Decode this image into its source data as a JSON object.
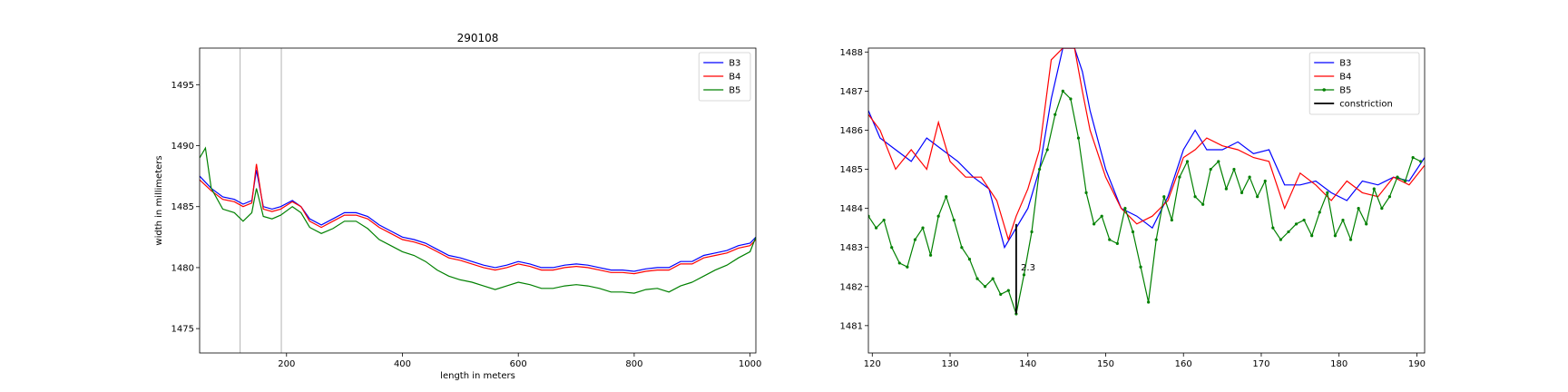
{
  "chart_data": [
    {
      "type": "line",
      "title": "290108",
      "xlabel": "length in meters",
      "ylabel": "width in millimeters",
      "xlim": [
        50,
        1010
      ],
      "ylim": [
        1473,
        1498
      ],
      "xticks": [
        200,
        400,
        600,
        800,
        1000
      ],
      "yticks": [
        1475,
        1480,
        1485,
        1490,
        1495
      ],
      "vlines": [
        120,
        191
      ],
      "legend": "top-right",
      "grid": false,
      "series": [
        {
          "name": "B3",
          "color": "#0000ff",
          "x": [
            50,
            70,
            90,
            110,
            125,
            140,
            148,
            160,
            175,
            190,
            210,
            225,
            240,
            260,
            280,
            300,
            320,
            340,
            360,
            380,
            400,
            420,
            440,
            460,
            480,
            500,
            520,
            540,
            560,
            580,
            600,
            620,
            640,
            660,
            680,
            700,
            720,
            740,
            760,
            780,
            800,
            820,
            840,
            860,
            880,
            900,
            920,
            940,
            960,
            980,
            1000,
            1010
          ],
          "y": [
            1487.5,
            1486.5,
            1485.8,
            1485.6,
            1485.2,
            1485.5,
            1488,
            1485,
            1484.8,
            1485,
            1485.5,
            1485,
            1484,
            1483.5,
            1484,
            1484.5,
            1484.5,
            1484.2,
            1483.5,
            1483,
            1482.5,
            1482.3,
            1482,
            1481.5,
            1481,
            1480.8,
            1480.5,
            1480.2,
            1480,
            1480.2,
            1480.5,
            1480.3,
            1480,
            1480,
            1480.2,
            1480.3,
            1480.2,
            1480,
            1479.8,
            1479.8,
            1479.7,
            1479.9,
            1480,
            1480,
            1480.5,
            1480.5,
            1481,
            1481.2,
            1481.4,
            1481.8,
            1482,
            1482.5
          ]
        },
        {
          "name": "B4",
          "color": "#ff0000",
          "x": [
            50,
            70,
            90,
            110,
            125,
            140,
            148,
            160,
            175,
            190,
            210,
            225,
            240,
            260,
            280,
            300,
            320,
            340,
            360,
            380,
            400,
            420,
            440,
            460,
            480,
            500,
            520,
            540,
            560,
            580,
            600,
            620,
            640,
            660,
            680,
            700,
            720,
            740,
            760,
            780,
            800,
            820,
            840,
            860,
            880,
            900,
            920,
            940,
            960,
            980,
            1000,
            1010
          ],
          "y": [
            1487.2,
            1486.3,
            1485.6,
            1485.4,
            1485,
            1485.3,
            1488.5,
            1484.8,
            1484.6,
            1484.8,
            1485.4,
            1485,
            1483.8,
            1483.3,
            1483.8,
            1484.3,
            1484.3,
            1484,
            1483.3,
            1482.8,
            1482.3,
            1482.1,
            1481.8,
            1481.3,
            1480.8,
            1480.6,
            1480.3,
            1480,
            1479.8,
            1480,
            1480.3,
            1480.1,
            1479.8,
            1479.8,
            1480,
            1480.1,
            1480,
            1479.8,
            1479.6,
            1479.6,
            1479.5,
            1479.7,
            1479.8,
            1479.8,
            1480.3,
            1480.3,
            1480.8,
            1481,
            1481.2,
            1481.6,
            1481.8,
            1482.3
          ]
        },
        {
          "name": "B5",
          "color": "#008000",
          "x": [
            50,
            60,
            70,
            90,
            110,
            125,
            140,
            148,
            160,
            175,
            190,
            210,
            225,
            240,
            260,
            280,
            300,
            320,
            340,
            360,
            380,
            400,
            420,
            440,
            460,
            480,
            500,
            520,
            540,
            560,
            580,
            600,
            620,
            640,
            660,
            680,
            700,
            720,
            740,
            760,
            780,
            800,
            820,
            840,
            860,
            880,
            900,
            920,
            940,
            960,
            980,
            1000,
            1010
          ],
          "y": [
            1489,
            1489.8,
            1486.5,
            1484.8,
            1484.5,
            1483.8,
            1484.5,
            1486.5,
            1484.2,
            1484,
            1484.3,
            1485,
            1484.5,
            1483.3,
            1482.8,
            1483.2,
            1483.8,
            1483.8,
            1483.2,
            1482.3,
            1481.8,
            1481.3,
            1481,
            1480.5,
            1479.8,
            1479.3,
            1479,
            1478.8,
            1478.5,
            1478.2,
            1478.5,
            1478.8,
            1478.6,
            1478.3,
            1478.3,
            1478.5,
            1478.6,
            1478.5,
            1478.3,
            1478,
            1478,
            1477.9,
            1478.2,
            1478.3,
            1478,
            1478.5,
            1478.8,
            1479.3,
            1479.8,
            1480.2,
            1480.8,
            1481.3,
            1482.5
          ]
        }
      ]
    },
    {
      "type": "line",
      "title": "",
      "xlabel": "",
      "ylabel": "",
      "xlim": [
        119.5,
        191
      ],
      "ylim": [
        1480.3,
        1488.1
      ],
      "xticks": [
        120,
        130,
        140,
        150,
        160,
        170,
        180,
        190
      ],
      "yticks": [
        1481,
        1482,
        1483,
        1484,
        1485,
        1486,
        1487,
        1488
      ],
      "legend": "top-right",
      "grid": false,
      "annotation": {
        "text": "2.3",
        "x": 139.1,
        "y": 1482.5
      },
      "constriction": {
        "name": "constriction",
        "color": "#000000",
        "x": 138.5,
        "y1": 1481.3,
        "y2": 1483.6
      },
      "series": [
        {
          "name": "B3",
          "color": "#0000ff",
          "marker": false,
          "x": [
            119.5,
            121,
            123,
            125,
            127,
            129,
            131,
            133,
            135,
            137,
            138.5,
            140,
            141.5,
            143,
            144.5,
            146,
            147,
            148,
            150,
            152,
            154,
            156,
            158,
            160,
            161.5,
            163,
            165,
            167,
            169,
            171,
            173,
            175,
            177,
            179,
            181,
            183,
            185,
            187,
            189,
            191
          ],
          "y": [
            1486.5,
            1485.8,
            1485.5,
            1485.2,
            1485.8,
            1485.5,
            1485.2,
            1484.8,
            1484.5,
            1483,
            1483.5,
            1484,
            1485,
            1486.8,
            1488.1,
            1488.1,
            1487.5,
            1486.5,
            1485,
            1484,
            1483.8,
            1483.5,
            1484.3,
            1485.5,
            1486,
            1485.5,
            1485.5,
            1485.7,
            1485.4,
            1485.5,
            1484.6,
            1484.6,
            1484.7,
            1484.4,
            1484.2,
            1484.7,
            1484.6,
            1484.8,
            1484.7,
            1485.3
          ]
        },
        {
          "name": "B4",
          "color": "#ff0000",
          "marker": false,
          "x": [
            119.5,
            121,
            123,
            125,
            127,
            128.5,
            130,
            132,
            134,
            136,
            137.5,
            138.5,
            140,
            141.5,
            143,
            144.5,
            146,
            147,
            148,
            150,
            152,
            154,
            156,
            158,
            160,
            161.5,
            163,
            165,
            167,
            169,
            171,
            173,
            175,
            177,
            179,
            181,
            183,
            185,
            187,
            189,
            191
          ],
          "y": [
            1486.4,
            1486,
            1485,
            1485.5,
            1485,
            1486.2,
            1485.2,
            1484.8,
            1484.8,
            1484.2,
            1483.2,
            1483.8,
            1484.5,
            1485.5,
            1487.8,
            1488.1,
            1488.1,
            1487,
            1486,
            1484.8,
            1484,
            1483.6,
            1483.8,
            1484.2,
            1485.3,
            1485.5,
            1485.8,
            1485.6,
            1485.5,
            1485.3,
            1485.2,
            1484,
            1484.9,
            1484.6,
            1484.2,
            1484.7,
            1484.4,
            1484.3,
            1484.8,
            1484.6,
            1485.1
          ]
        },
        {
          "name": "B5",
          "color": "#008000",
          "marker": true,
          "x": [
            119.5,
            120.5,
            121.5,
            122.5,
            123.5,
            124.5,
            125.5,
            126.5,
            127.5,
            128.5,
            129.5,
            130.5,
            131.5,
            132.5,
            133.5,
            134.5,
            135.5,
            136.5,
            137.5,
            138.5,
            139.5,
            140.5,
            141.5,
            142.5,
            143.5,
            144.5,
            145.5,
            146.5,
            147.5,
            148.5,
            149.5,
            150.5,
            151.5,
            152.5,
            153.5,
            154.5,
            155.5,
            156.5,
            157.5,
            158.5,
            159.5,
            160.5,
            161.5,
            162.5,
            163.5,
            164.5,
            165.5,
            166.5,
            167.5,
            168.5,
            169.5,
            170.5,
            171.5,
            172.5,
            173.5,
            174.5,
            175.5,
            176.5,
            177.5,
            178.5,
            179.5,
            180.5,
            181.5,
            182.5,
            183.5,
            184.5,
            185.5,
            186.5,
            187.5,
            188.5,
            189.5,
            190.5
          ],
          "y": [
            1483.8,
            1483.5,
            1483.7,
            1483,
            1482.6,
            1482.5,
            1483.2,
            1483.5,
            1482.8,
            1483.8,
            1484.3,
            1483.7,
            1483,
            1482.7,
            1482.2,
            1482,
            1482.2,
            1481.8,
            1481.9,
            1481.3,
            1482.3,
            1483.4,
            1485,
            1485.5,
            1486.4,
            1487,
            1486.8,
            1485.8,
            1484.4,
            1483.6,
            1483.8,
            1483.2,
            1483.1,
            1484,
            1483.4,
            1482.5,
            1481.6,
            1483.2,
            1484.3,
            1483.7,
            1484.8,
            1485.2,
            1484.3,
            1484.1,
            1485,
            1485.2,
            1484.5,
            1485,
            1484.4,
            1484.8,
            1484.3,
            1484.7,
            1483.5,
            1483.2,
            1483.4,
            1483.6,
            1483.7,
            1483.3,
            1483.9,
            1484.4,
            1483.3,
            1483.7,
            1483.2,
            1484,
            1483.6,
            1484.5,
            1484,
            1484.3,
            1484.8,
            1484.7,
            1485.3,
            1485.2
          ]
        }
      ]
    }
  ]
}
